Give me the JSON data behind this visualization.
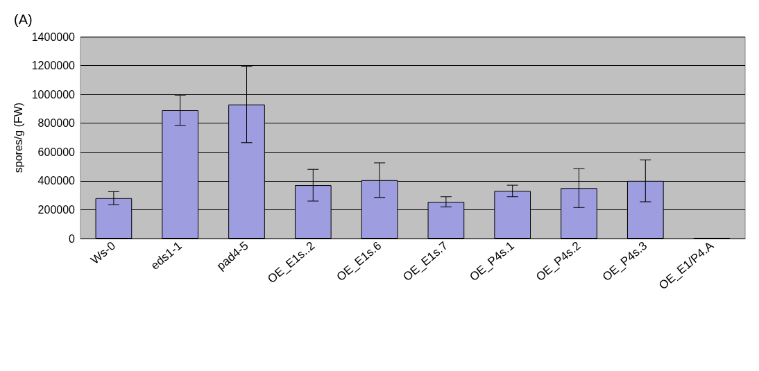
{
  "chart_data": {
    "type": "bar",
    "ylabel": "spores/g (FW)",
    "annotations": [
      "(A)"
    ],
    "categories": [
      "Ws-0",
      "eds1-1",
      "pad4-5",
      "OE_E1s..2",
      "OE_E1s.6",
      "OE_E1s.7",
      "OE_P4s.1",
      "OE_P4s.2",
      "OE_P4s.3",
      "OE_E1/P4.A"
    ],
    "values": [
      280000,
      890000,
      930000,
      370000,
      405000,
      255000,
      330000,
      350000,
      400000,
      5000
    ],
    "errors": [
      45000,
      105000,
      265000,
      110000,
      120000,
      35000,
      40000,
      135000,
      145000,
      null
    ],
    "color": "#9d9de0",
    "ylim": [
      0,
      1400000
    ],
    "yticks": [
      0,
      200000,
      400000,
      600000,
      800000,
      1000000,
      1200000,
      1400000
    ],
    "grid": "y"
  }
}
